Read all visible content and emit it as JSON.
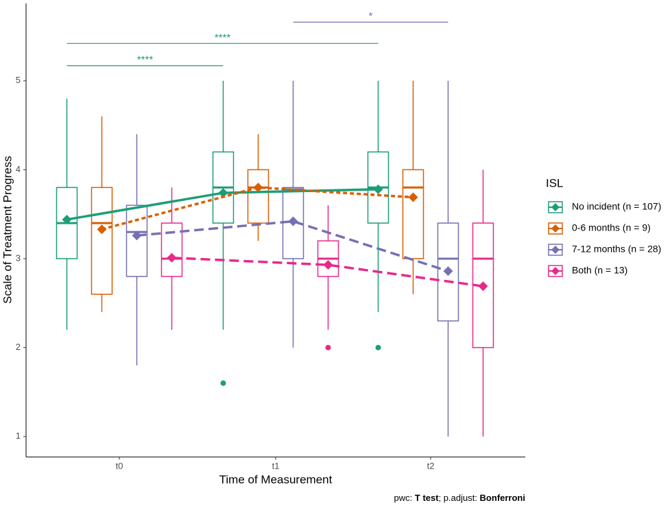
{
  "chart_data": {
    "type": "box",
    "x_label": "Time of Measurement",
    "y_label": "Scale of Treatment Progress",
    "categories": [
      "t0",
      "t1",
      "t2"
    ],
    "ylim": [
      0.77,
      5.87
    ],
    "yticks": [
      1,
      2,
      3,
      4,
      5
    ],
    "legend_title": "ISL",
    "legend_position": "right",
    "series": [
      {
        "name": "No incident (n = 107)",
        "color": "#1b9e77",
        "dash": "solid",
        "boxes": [
          {
            "min": 2.2,
            "q1": 3.0,
            "median": 3.4,
            "q3": 3.8,
            "max": 4.8,
            "outliers": []
          },
          {
            "min": 2.2,
            "q1": 3.4,
            "median": 3.8,
            "q3": 4.2,
            "max": 5.0,
            "outliers": [
              1.6
            ]
          },
          {
            "min": 2.4,
            "q1": 3.4,
            "median": 3.8,
            "q3": 4.2,
            "max": 5.0,
            "outliers": [
              2.0
            ]
          }
        ],
        "means": [
          3.44,
          3.74,
          3.78
        ]
      },
      {
        "name": "0-6 months (n = 9)",
        "color": "#d95f02",
        "dash": "dotted",
        "boxes": [
          {
            "min": 2.4,
            "q1": 2.6,
            "median": 3.4,
            "q3": 3.8,
            "max": 4.6,
            "outliers": []
          },
          {
            "min": 3.2,
            "q1": 3.4,
            "median": 3.8,
            "q3": 4.0,
            "max": 4.4,
            "outliers": []
          },
          {
            "min": 2.6,
            "q1": 3.0,
            "median": 3.8,
            "q3": 4.0,
            "max": 5.0,
            "outliers": []
          }
        ],
        "means": [
          3.33,
          3.8,
          3.69
        ]
      },
      {
        "name": "7-12 months (n = 28)",
        "color": "#7570b3",
        "dash": "dashed",
        "boxes": [
          {
            "min": 1.8,
            "q1": 2.8,
            "median": 3.3,
            "q3": 3.6,
            "max": 4.4,
            "outliers": []
          },
          {
            "min": 2.0,
            "q1": 3.0,
            "median": 3.78,
            "q3": 3.8,
            "max": 5.0,
            "outliers": []
          },
          {
            "min": 1.0,
            "q1": 2.3,
            "median": 3.0,
            "q3": 3.4,
            "max": 5.0,
            "outliers": []
          }
        ],
        "means": [
          3.26,
          3.42,
          2.86
        ]
      },
      {
        "name": "Both (n = 13)",
        "color": "#e7298a",
        "dash": "dashed",
        "boxes": [
          {
            "min": 2.2,
            "q1": 2.8,
            "median": 3.0,
            "q3": 3.4,
            "max": 3.8,
            "outliers": []
          },
          {
            "min": 2.2,
            "q1": 2.8,
            "median": 3.0,
            "q3": 3.2,
            "max": 3.6,
            "outliers": [
              2.0
            ]
          },
          {
            "min": 1.0,
            "q1": 2.0,
            "median": 3.0,
            "q3": 3.4,
            "max": 4.0,
            "outliers": []
          }
        ],
        "means": [
          3.01,
          2.93,
          2.69
        ]
      }
    ],
    "annotations": [
      {
        "label": "****",
        "y": 5.17,
        "series": "No incident (n = 107)",
        "from": "t0",
        "to": "t1",
        "color": "#1b9e77"
      },
      {
        "label": "****",
        "y": 5.42,
        "series": "No incident (n = 107)",
        "from": "t0",
        "to": "t2",
        "color": "#1b9e77"
      },
      {
        "label": "*",
        "y": 5.66,
        "series": "7-12 months (n = 28)",
        "from": "t1",
        "to": "t2",
        "color": "#7570b3"
      }
    ],
    "caption": [
      "pwc: ",
      "T test",
      "; p.adjust: ",
      "Bonferroni"
    ]
  }
}
